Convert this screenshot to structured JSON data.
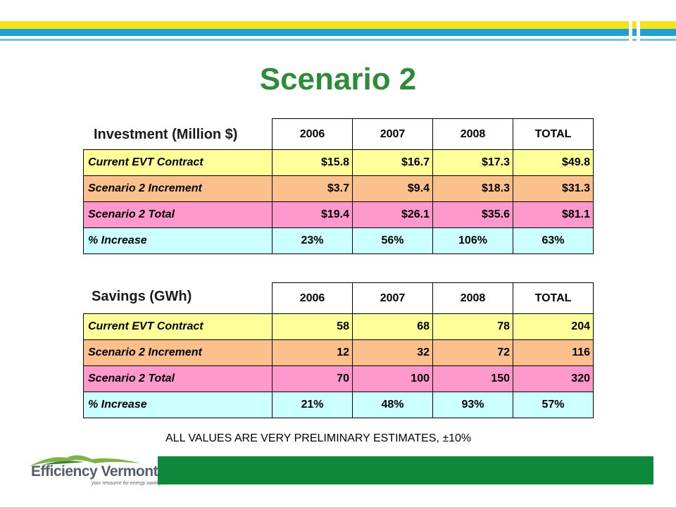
{
  "title": "Scenario 2",
  "investment": {
    "label": "Investment (Million $)",
    "columns": [
      "2006",
      "2007",
      "2008",
      "TOTAL"
    ],
    "rows": [
      {
        "label": "Current EVT Contract",
        "values": [
          "$15.8",
          "$16.7",
          "$17.3",
          "$49.8"
        ]
      },
      {
        "label": "Scenario 2 Increment",
        "values": [
          "$3.7",
          "$9.4",
          "$18.3",
          "$31.3"
        ]
      },
      {
        "label": "Scenario 2 Total",
        "values": [
          "$19.4",
          "$26.1",
          "$35.6",
          "$81.1"
        ]
      },
      {
        "label": "% Increase",
        "values": [
          "23%",
          "56%",
          "106%",
          "63%"
        ]
      }
    ]
  },
  "savings": {
    "label": "Savings (GWh)",
    "columns": [
      "2006",
      "2007",
      "2008",
      "TOTAL"
    ],
    "rows": [
      {
        "label": "Current EVT Contract",
        "values": [
          "58",
          "68",
          "78",
          "204"
        ]
      },
      {
        "label": "Scenario 2 Increment",
        "values": [
          "12",
          "32",
          "72",
          "116"
        ]
      },
      {
        "label": "Scenario 2 Total",
        "values": [
          "70",
          "100",
          "150",
          "320"
        ]
      },
      {
        "label": "% Increase",
        "values": [
          "21%",
          "48%",
          "93%",
          "57%"
        ]
      }
    ]
  },
  "footnote": "ALL VALUES ARE VERY PRELIMINARY ESTIMATES, ±10%",
  "logo": {
    "name": "Efficiency Vermont",
    "tagline": "your resource for energy savings"
  },
  "colors": {
    "title": "#2e8b3a",
    "current_row": "#ffff99",
    "increment_row": "#fcc08c",
    "total_row": "#ff99cc",
    "increase_row": "#ccffff",
    "footer_bar": "#0f8a3c"
  }
}
